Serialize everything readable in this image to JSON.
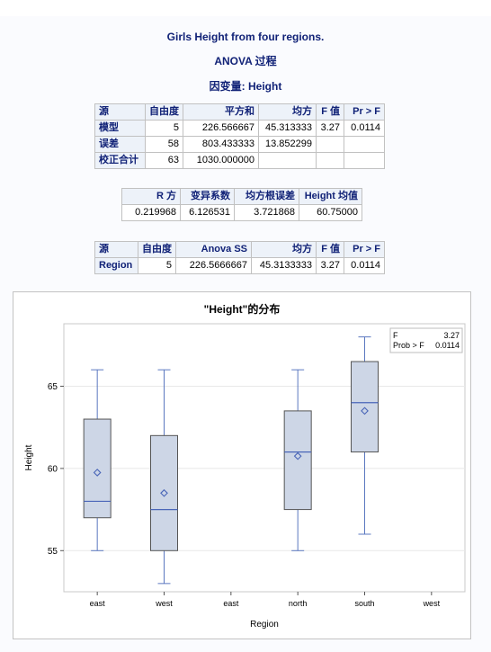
{
  "header": {
    "title": "Girls Height from four regions.",
    "procedure": "ANOVA 过程",
    "dependent": "因变量: Height"
  },
  "anova_table": {
    "columns": [
      "源",
      "自由度",
      "平方和",
      "均方",
      "F 值",
      "Pr > F"
    ],
    "rows": [
      [
        "模型",
        "5",
        "226.566667",
        "45.313333",
        "3.27",
        "0.0114"
      ],
      [
        "误差",
        "58",
        "803.433333",
        "13.852299",
        "",
        ""
      ],
      [
        "校正合计",
        "63",
        "1030.000000",
        "",
        "",
        ""
      ]
    ]
  },
  "fit_table": {
    "columns": [
      "R 方",
      "变异系数",
      "均方根误差",
      "Height 均值"
    ],
    "rows": [
      [
        "0.219968",
        "6.126531",
        "3.721868",
        "60.75000"
      ]
    ]
  },
  "ss_table": {
    "columns": [
      "源",
      "自由度",
      "Anova SS",
      "均方",
      "F 值",
      "Pr > F"
    ],
    "rows": [
      [
        "Region",
        "5",
        "226.5666667",
        "45.3133333",
        "3.27",
        "0.0114"
      ]
    ]
  },
  "chart_data": {
    "type": "box",
    "title": "\"Height\"的分布",
    "xlabel": "Region",
    "ylabel": "Height",
    "categories": [
      "east",
      "west",
      "east",
      "north",
      "south",
      "west"
    ],
    "ylim": [
      52.5,
      68.8
    ],
    "yticks": [
      55,
      60,
      65
    ],
    "boxes": [
      {
        "index": 0,
        "min": 55,
        "q1": 57,
        "median": 58,
        "q3": 63,
        "max": 66,
        "mean": 59.75
      },
      {
        "index": 1,
        "min": 53,
        "q1": 55,
        "median": 57.5,
        "q3": 62,
        "max": 66,
        "mean": 58.5
      },
      {
        "index": 3,
        "min": 55,
        "q1": 57.5,
        "median": 61,
        "q3": 63.5,
        "max": 66,
        "mean": 60.75
      },
      {
        "index": 4,
        "min": 56,
        "q1": 61,
        "median": 64,
        "q3": 66.5,
        "max": 68,
        "mean": 63.5
      }
    ],
    "inset": {
      "f_label": "F",
      "f_value": "3.27",
      "p_label": "Prob > F",
      "p_value": "0.0114"
    },
    "colors": {
      "box_fill": "#cdd6e6",
      "box_stroke": "#555555",
      "whisker": "#5b78c0",
      "median": "#4a66b8",
      "mean_marker": "#4a66b8",
      "grid": "#e8e8e8"
    }
  }
}
